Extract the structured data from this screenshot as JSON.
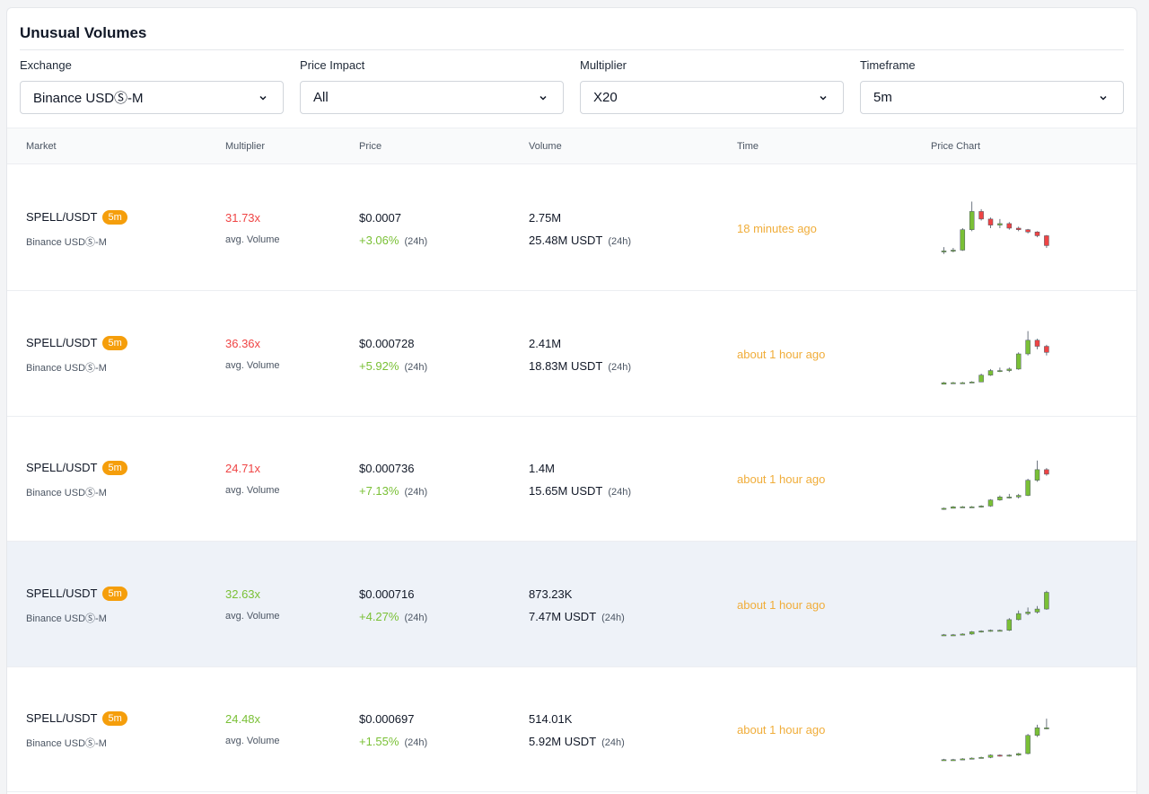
{
  "title": "Unusual Volumes",
  "filters": [
    {
      "label": "Exchange",
      "value": "Binance USDⓈ-M"
    },
    {
      "label": "Price Impact",
      "value": "All"
    },
    {
      "label": "Multiplier",
      "value": "X20"
    },
    {
      "label": "Timeframe",
      "value": "5m"
    }
  ],
  "columns": [
    "Market",
    "Multiplier",
    "Price",
    "Volume",
    "Time",
    "Price Chart"
  ],
  "labels": {
    "avg_volume": "avg. Volume",
    "period": "(24h)"
  },
  "colors": {
    "up": "#7ac036",
    "down": "#ef4444",
    "time": "#f0ad3a",
    "badge": "#f59e0b"
  },
  "rows": [
    {
      "pair": "SPELL/USDT",
      "badge": "5m",
      "exchange": "Binance USDⓈ-M",
      "multiplier": "31.73x",
      "multiplier_dir": "down",
      "price": "$0.0007",
      "change": "+3.06%",
      "volume": "2.75M",
      "volume_24h": "25.48M USDT",
      "time": "18 minutes ago",
      "candles": [
        [
          0.7,
          0.7,
          0.75,
          0.66
        ],
        [
          0.7,
          0.71,
          0.74,
          0.68
        ],
        [
          0.71,
          0.98,
          1.0,
          0.7
        ],
        [
          0.98,
          1.22,
          1.35,
          0.96
        ],
        [
          1.22,
          1.12,
          1.25,
          1.1
        ],
        [
          1.12,
          1.04,
          1.14,
          1.0
        ],
        [
          1.04,
          1.06,
          1.12,
          1.0
        ],
        [
          1.06,
          1.0,
          1.08,
          0.98
        ],
        [
          1.0,
          0.98,
          1.02,
          0.96
        ],
        [
          0.98,
          0.95,
          0.99,
          0.93
        ],
        [
          0.95,
          0.9,
          0.96,
          0.88
        ],
        [
          0.9,
          0.77,
          0.91,
          0.74
        ]
      ]
    },
    {
      "pair": "SPELL/USDT",
      "badge": "5m",
      "exchange": "Binance USDⓈ-M",
      "multiplier": "36.36x",
      "multiplier_dir": "down",
      "price": "$0.000728",
      "change": "+5.92%",
      "volume": "2.41M",
      "volume_24h": "18.83M USDT",
      "time": "about 1 hour ago",
      "candles": [
        [
          0.6,
          0.62,
          0.63,
          0.6
        ],
        [
          0.62,
          0.62,
          0.63,
          0.61
        ],
        [
          0.62,
          0.62,
          0.63,
          0.61
        ],
        [
          0.62,
          0.63,
          0.64,
          0.62
        ],
        [
          0.63,
          0.72,
          0.74,
          0.63
        ],
        [
          0.72,
          0.78,
          0.8,
          0.71
        ],
        [
          0.78,
          0.78,
          0.82,
          0.76
        ],
        [
          0.78,
          0.8,
          0.82,
          0.76
        ],
        [
          0.8,
          1.0,
          1.02,
          0.79
        ],
        [
          1.0,
          1.18,
          1.3,
          0.98
        ],
        [
          1.18,
          1.1,
          1.2,
          1.06
        ],
        [
          1.1,
          1.02,
          1.12,
          0.98
        ]
      ]
    },
    {
      "pair": "SPELL/USDT",
      "badge": "5m",
      "exchange": "Binance USDⓈ-M",
      "multiplier": "24.71x",
      "multiplier_dir": "down",
      "price": "$0.000736",
      "change": "+7.13%",
      "volume": "1.4M",
      "volume_24h": "15.65M USDT",
      "time": "about 1 hour ago",
      "candles": [
        [
          0.6,
          0.61,
          0.62,
          0.59
        ],
        [
          0.61,
          0.63,
          0.64,
          0.61
        ],
        [
          0.63,
          0.63,
          0.64,
          0.62
        ],
        [
          0.63,
          0.63,
          0.64,
          0.62
        ],
        [
          0.63,
          0.64,
          0.65,
          0.62
        ],
        [
          0.64,
          0.72,
          0.73,
          0.63
        ],
        [
          0.72,
          0.76,
          0.78,
          0.71
        ],
        [
          0.76,
          0.76,
          0.8,
          0.74
        ],
        [
          0.76,
          0.78,
          0.8,
          0.74
        ],
        [
          0.78,
          0.98,
          1.0,
          0.77
        ],
        [
          0.98,
          1.12,
          1.24,
          0.96
        ],
        [
          1.12,
          1.06,
          1.14,
          1.04
        ]
      ]
    },
    {
      "pair": "SPELL/USDT",
      "badge": "5m",
      "exchange": "Binance USDⓈ-M",
      "multiplier": "32.63x",
      "multiplier_dir": "up",
      "price": "$0.000716",
      "change": "+4.27%",
      "volume": "873.23K",
      "volume_24h": "7.47M USDT",
      "time": "about 1 hour ago",
      "candles": [
        [
          0.6,
          0.6,
          0.61,
          0.59
        ],
        [
          0.6,
          0.6,
          0.61,
          0.59
        ],
        [
          0.6,
          0.61,
          0.62,
          0.6
        ],
        [
          0.61,
          0.64,
          0.65,
          0.6
        ],
        [
          0.64,
          0.65,
          0.66,
          0.63
        ],
        [
          0.65,
          0.66,
          0.67,
          0.64
        ],
        [
          0.66,
          0.66,
          0.67,
          0.65
        ],
        [
          0.66,
          0.8,
          0.82,
          0.65
        ],
        [
          0.8,
          0.88,
          0.92,
          0.79
        ],
        [
          0.88,
          0.9,
          0.96,
          0.86
        ],
        [
          0.9,
          0.94,
          0.98,
          0.88
        ],
        [
          0.94,
          1.16,
          1.18,
          0.93
        ]
      ]
    },
    {
      "pair": "SPELL/USDT",
      "badge": "5m",
      "exchange": "Binance USDⓈ-M",
      "multiplier": "24.48x",
      "multiplier_dir": "up",
      "price": "$0.000697",
      "change": "+1.55%",
      "volume": "514.01K",
      "volume_24h": "5.92M USDT",
      "time": "about 1 hour ago",
      "candles": [
        [
          0.6,
          0.6,
          0.61,
          0.59
        ],
        [
          0.6,
          0.6,
          0.61,
          0.59
        ],
        [
          0.6,
          0.61,
          0.62,
          0.6
        ],
        [
          0.61,
          0.62,
          0.63,
          0.61
        ],
        [
          0.62,
          0.63,
          0.64,
          0.62
        ],
        [
          0.63,
          0.66,
          0.67,
          0.62
        ],
        [
          0.66,
          0.65,
          0.67,
          0.64
        ],
        [
          0.65,
          0.66,
          0.67,
          0.64
        ],
        [
          0.66,
          0.68,
          0.69,
          0.65
        ],
        [
          0.68,
          0.92,
          0.94,
          0.67
        ],
        [
          0.92,
          1.02,
          1.06,
          0.9
        ],
        [
          1.02,
          1.02,
          1.14,
          1.0
        ]
      ]
    }
  ]
}
